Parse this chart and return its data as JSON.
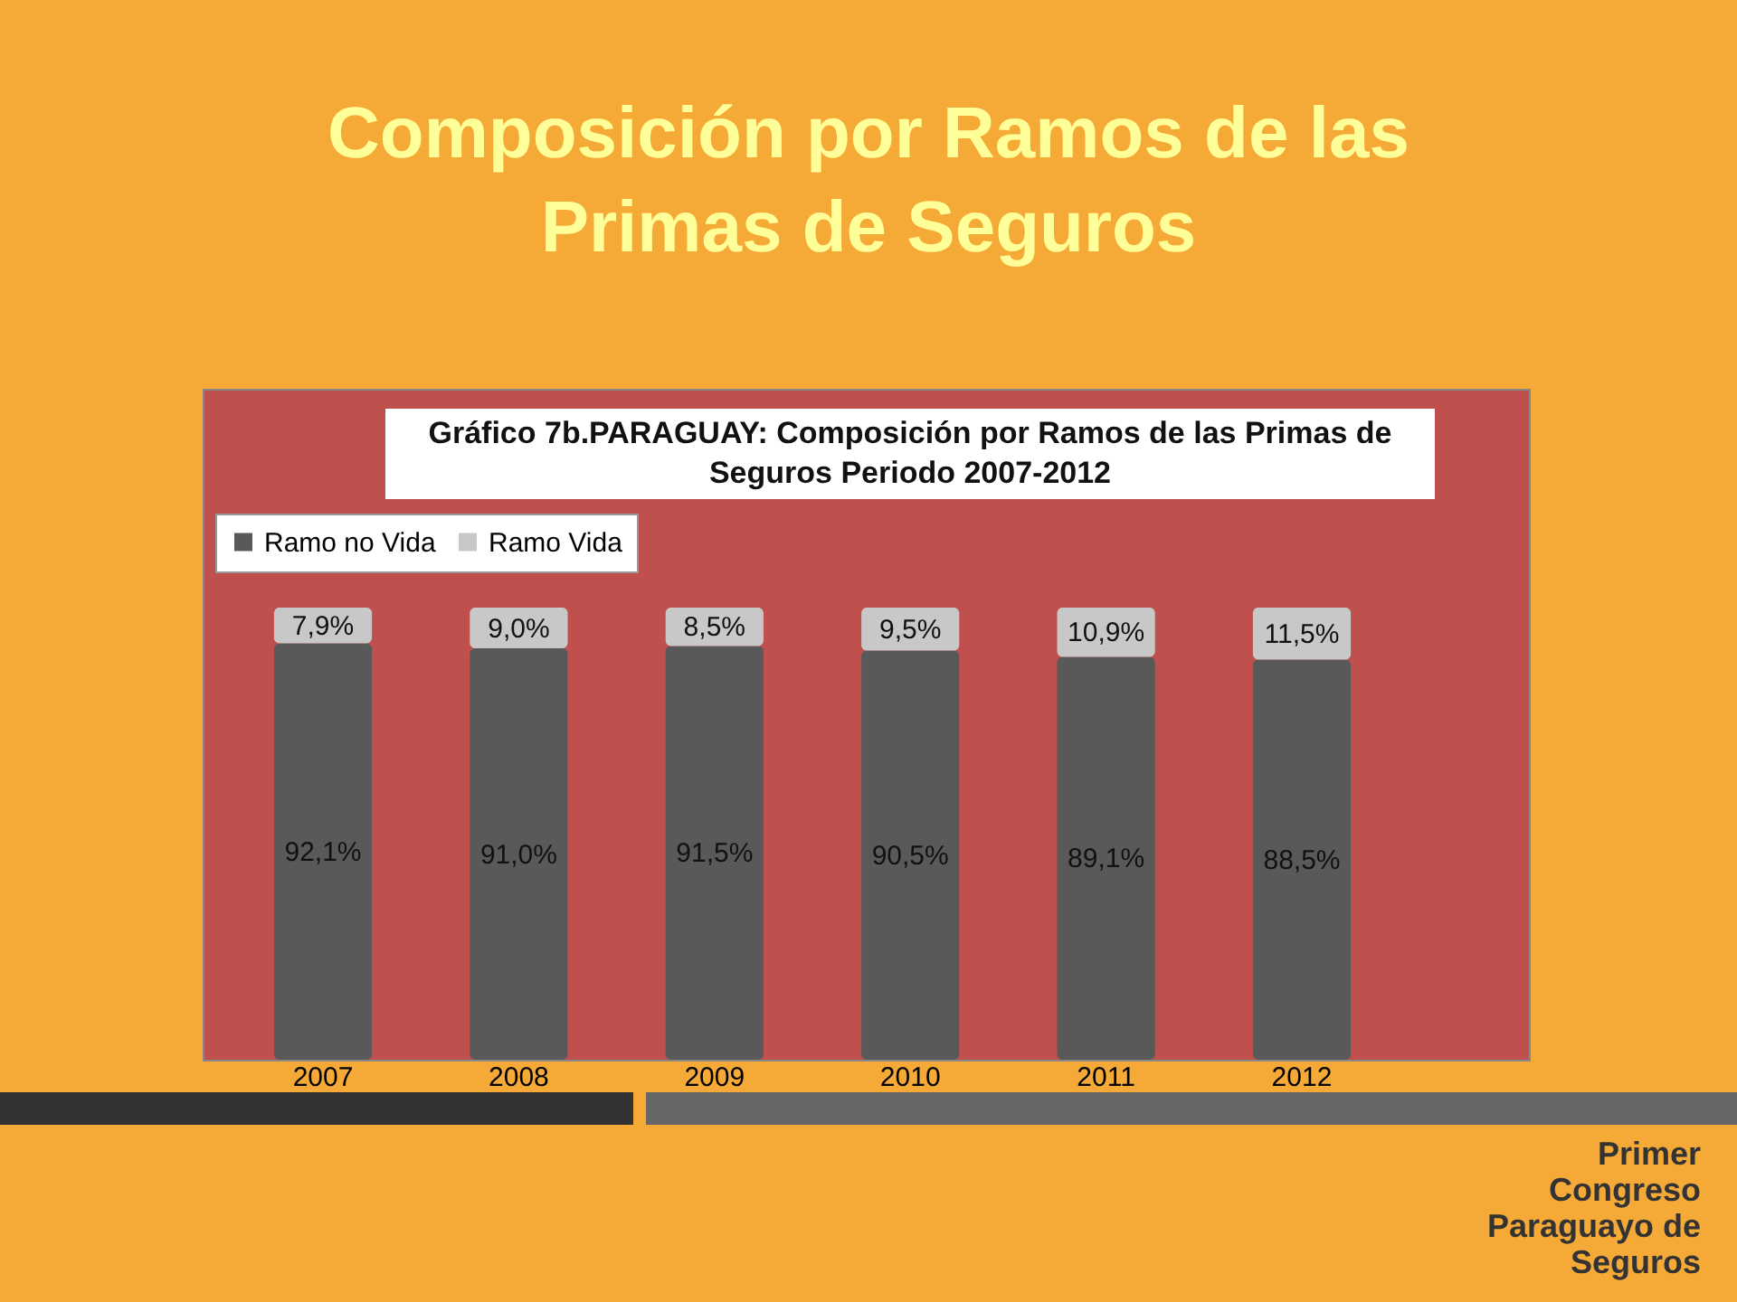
{
  "chart_data": {
    "type": "bar",
    "stacked": true,
    "title": "Composición por Ramos de las Primas de Seguros",
    "subtitle": "Gráfico  7b.PARAGUAY:  Composición por Ramos de las Primas de Seguros Periodo 2007-2012",
    "categories": [
      "2007",
      "2008",
      "2009",
      "2010",
      "2011",
      "2012"
    ],
    "series": [
      {
        "name": "Ramo no Vida",
        "color": "#595959",
        "values": [
          92.1,
          91.0,
          91.5,
          90.5,
          89.1,
          88.5
        ],
        "value_labels": [
          "92,1%",
          "91,0%",
          "91,5%",
          "90,5%",
          "89,1%",
          "88,5%"
        ]
      },
      {
        "name": "Ramo Vida",
        "color": "#c8c8c8",
        "values": [
          7.9,
          9.0,
          8.5,
          9.5,
          10.9,
          11.5
        ],
        "value_labels": [
          "7,9%",
          "9,0%",
          "8,5%",
          "9,5%",
          "10,9%",
          "11,5%"
        ]
      }
    ],
    "legend": "top",
    "grid": false,
    "annotations": [
      "Primer Congreso Paraguayo de Seguros"
    ]
  }
}
